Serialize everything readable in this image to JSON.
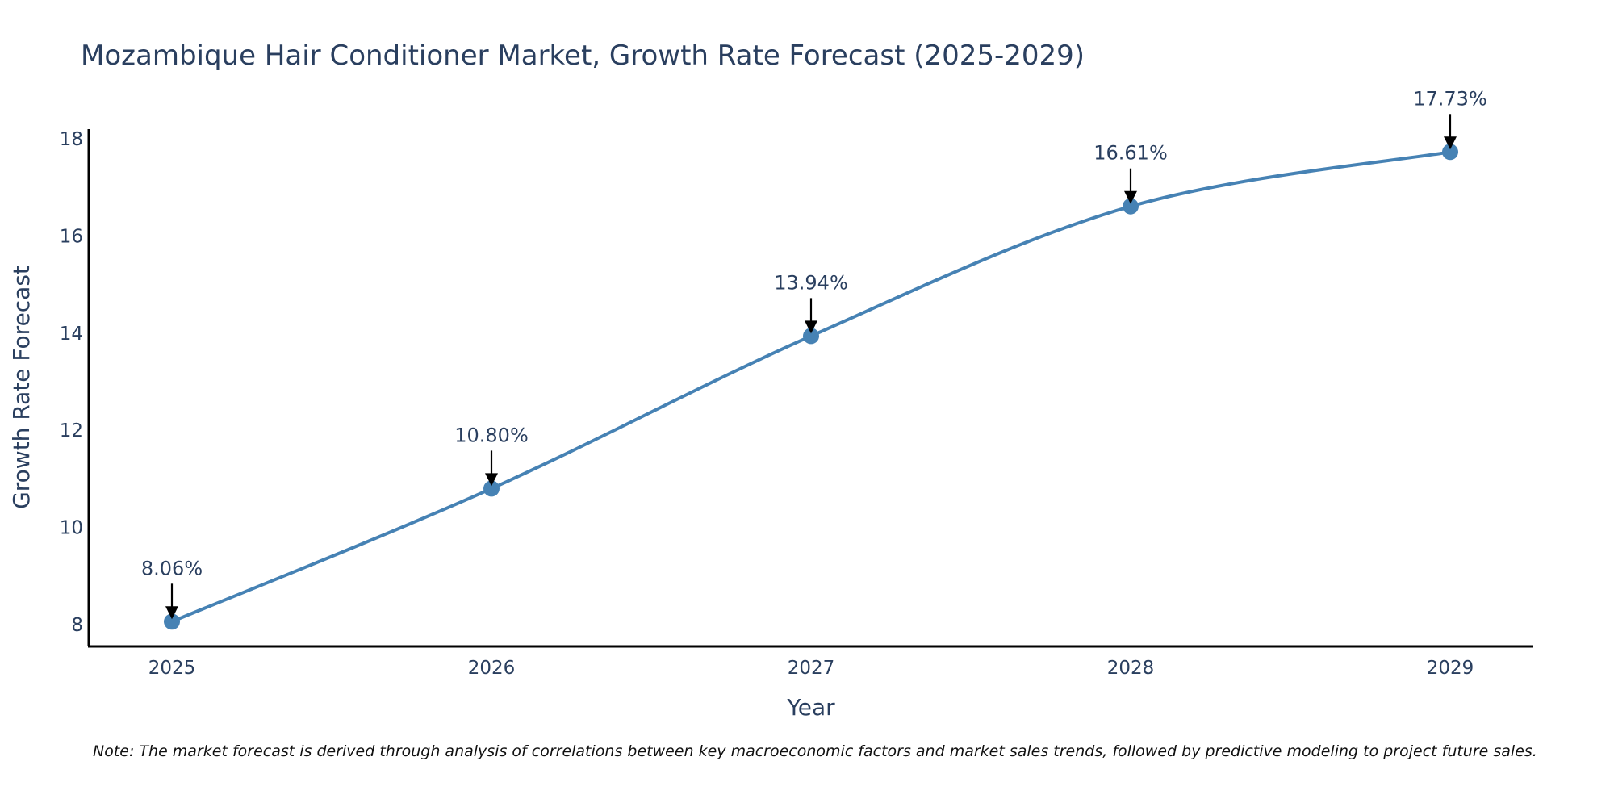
{
  "chart_data": {
    "type": "line",
    "title": "Mozambique Hair Conditioner Market, Growth Rate Forecast (2025-2029)",
    "xlabel": "Year",
    "ylabel": "Growth Rate Forecast",
    "categories": [
      "2025",
      "2026",
      "2027",
      "2028",
      "2029"
    ],
    "series": [
      {
        "name": "Growth Rate Forecast",
        "values": [
          8.06,
          10.8,
          13.94,
          16.61,
          17.73
        ],
        "color": "#4682b4"
      }
    ],
    "data_labels": [
      "8.06%",
      "10.80%",
      "13.94%",
      "16.61%",
      "17.73%"
    ],
    "ylim": [
      7.55,
      18.2
    ],
    "yticks": [
      8,
      10,
      12,
      14,
      16,
      18
    ],
    "grid": false,
    "legend": "none"
  },
  "note": "Note: The market forecast is derived through analysis of correlations between key macroeconomic factors and market sales trends, followed by predictive modeling to project future sales."
}
